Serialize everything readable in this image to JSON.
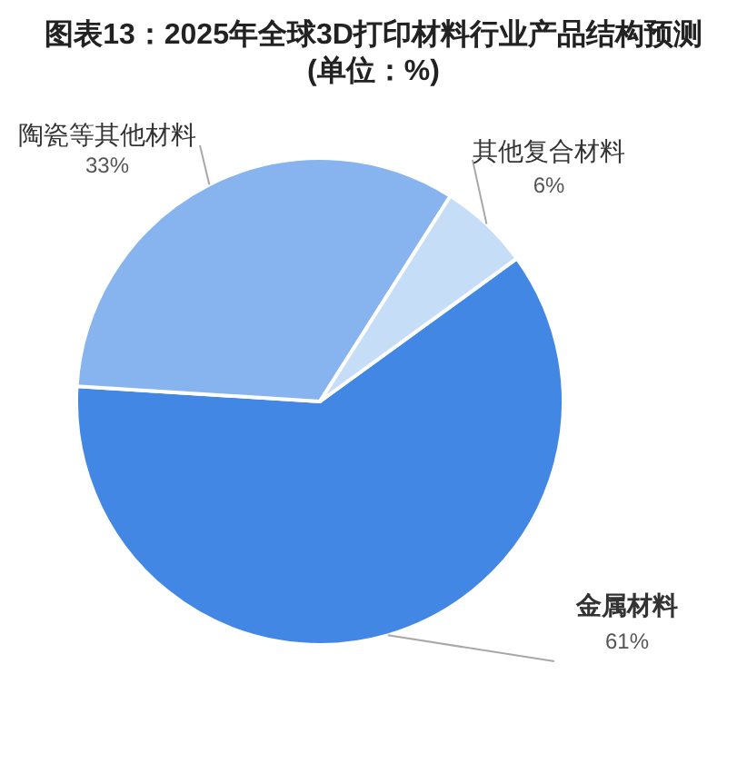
{
  "chart_data": {
    "type": "pie",
    "title": "图表13：2025年全球3D打印材料行业产品结构预测",
    "subtitle": "(单位：%)",
    "categories": [
      "金属材料",
      "陶瓷等其他材料",
      "其他复合材料"
    ],
    "values": [
      61,
      33,
      6
    ],
    "colors": [
      "#4287e4",
      "#87b4ee",
      "#c6ddf8"
    ],
    "value_labels": [
      "61%",
      "33%",
      "6%"
    ]
  }
}
